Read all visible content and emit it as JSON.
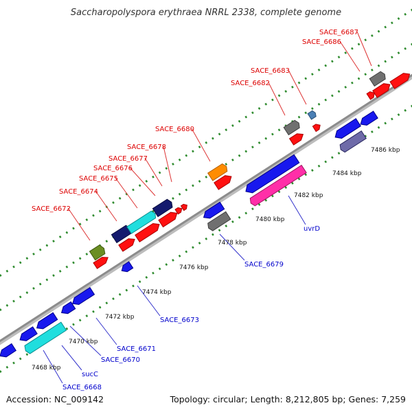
{
  "title": "Saccharopolyspora erythraea NRRL 2338, complete genome",
  "footer": {
    "accession": "Accession: NC_009142",
    "stats": "Topology: circular; Length: 8,212,805 bp; Genes: 7,259"
  },
  "colors": {
    "backbone": "#8c8c8c",
    "dots": "#2e8b2e",
    "label_forward": "#dd0000",
    "label_reverse": "#0000cc",
    "leader_forward": "#dd3333",
    "leader_reverse": "#3333cc"
  },
  "ticks": [
    "7468 kbp",
    "7470 kbp",
    "7472 kbp",
    "7474 kbp",
    "7476 kbp",
    "7478 kbp",
    "7480 kbp",
    "7482 kbp",
    "7484 kbp",
    "7486 kbp"
  ],
  "labels_forward": [
    "SACE_6672",
    "SACE_6674",
    "SACE_6675",
    "SACE_6676",
    "SACE_6677",
    "SACE_6678",
    "SACE_6680",
    "SACE_6682",
    "SACE_6683",
    "SACE_6686",
    "SACE_6687"
  ],
  "labels_reverse": [
    "SACE_6668",
    "sucC",
    "SACE_6670",
    "SACE_6671",
    "SACE_6673",
    "SACE_6679",
    "uvrD"
  ]
}
